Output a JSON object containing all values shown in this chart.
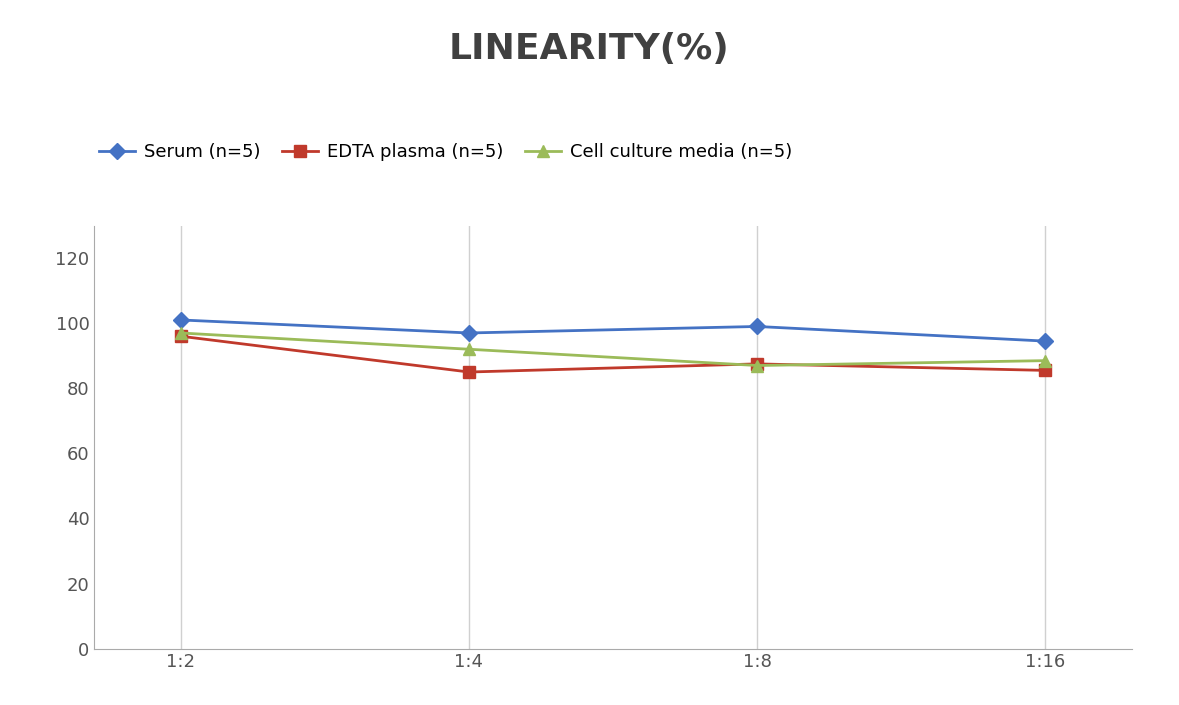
{
  "title": "LINEARITY(%)",
  "title_fontsize": 26,
  "title_fontweight": "bold",
  "x_labels": [
    "1:2",
    "1:4",
    "1:8",
    "1:16"
  ],
  "x_positions": [
    0,
    1,
    2,
    3
  ],
  "series": [
    {
      "label": "Serum (n=5)",
      "values": [
        101,
        97,
        99,
        94.5
      ],
      "color": "#4472C4",
      "marker": "D",
      "markersize": 8,
      "linewidth": 2
    },
    {
      "label": "EDTA plasma (n=5)",
      "values": [
        96,
        85,
        87.5,
        85.5
      ],
      "color": "#C0392B",
      "marker": "s",
      "markersize": 8,
      "linewidth": 2
    },
    {
      "label": "Cell culture media (n=5)",
      "values": [
        97,
        92,
        87,
        88.5
      ],
      "color": "#9BBB59",
      "marker": "^",
      "markersize": 8,
      "linewidth": 2
    }
  ],
  "ylim": [
    0,
    130
  ],
  "yticks": [
    0,
    20,
    40,
    60,
    80,
    100,
    120
  ],
  "background_color": "#FFFFFF",
  "grid_color": "#D0D0D0",
  "legend_fontsize": 13,
  "tick_fontsize": 13,
  "title_color": "#404040"
}
